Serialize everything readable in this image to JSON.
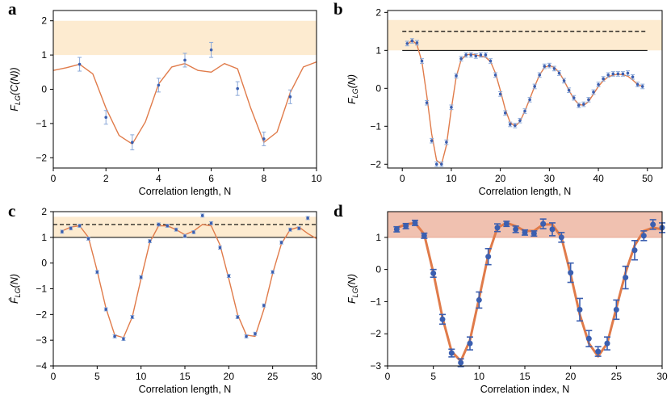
{
  "colors": {
    "band_yellow": "#fdebd0",
    "band_red": "#f0c1b0",
    "curve_orange": "#e07b4a",
    "marker_blue": "#3b5fb0",
    "errbar_blue": "#8aa8d8"
  },
  "chart_data": [
    {
      "panel": "a",
      "type": "scatter",
      "xlabel": "Correlation length, N",
      "ylabel": "F_LG(C(N))",
      "xlim": [
        0,
        10
      ],
      "ylim": [
        -2.3,
        2.3
      ],
      "xticks": [
        0,
        2,
        4,
        6,
        8,
        10
      ],
      "yticks": [
        -2,
        -1,
        0,
        1,
        2
      ],
      "band": [
        1,
        2
      ],
      "points": [
        {
          "x": 1,
          "y": 0.73,
          "err": 0.2
        },
        {
          "x": 2,
          "y": -0.82,
          "err": 0.2
        },
        {
          "x": 3,
          "y": -1.55,
          "err": 0.22
        },
        {
          "x": 4,
          "y": 0.12,
          "err": 0.2
        },
        {
          "x": 5,
          "y": 0.85,
          "err": 0.2
        },
        {
          "x": 6,
          "y": 1.15,
          "err": 0.22
        },
        {
          "x": 7,
          "y": 0.02,
          "err": 0.2
        },
        {
          "x": 8,
          "y": -1.45,
          "err": 0.2
        },
        {
          "x": 9,
          "y": -0.22,
          "err": 0.2
        }
      ],
      "fit": [
        [
          0,
          0.55
        ],
        [
          0.5,
          0.63
        ],
        [
          1,
          0.73
        ],
        [
          1.5,
          0.45
        ],
        [
          2,
          -0.55
        ],
        [
          2.5,
          -1.35
        ],
        [
          3,
          -1.6
        ],
        [
          3.5,
          -0.95
        ],
        [
          4,
          0.15
        ],
        [
          4.5,
          0.65
        ],
        [
          5,
          0.75
        ],
        [
          5.5,
          0.55
        ],
        [
          6,
          0.5
        ],
        [
          6.5,
          0.75
        ],
        [
          7,
          0.6
        ],
        [
          7.5,
          -0.55
        ],
        [
          8,
          -1.55
        ],
        [
          8.5,
          -1.25
        ],
        [
          9,
          -0.1
        ],
        [
          9.5,
          0.65
        ],
        [
          10,
          0.8
        ]
      ]
    },
    {
      "panel": "b",
      "type": "scatter",
      "xlabel": "Correlation length, N",
      "ylabel": "F_LG(N)",
      "xlim": [
        -3,
        53
      ],
      "ylim": [
        -2.1,
        2.05
      ],
      "xticks": [
        0,
        10,
        20,
        30,
        40,
        50
      ],
      "yticks": [
        -2,
        -1,
        0,
        1,
        2
      ],
      "band": [
        1,
        1.8
      ],
      "dashed": 1.5,
      "solid": 1,
      "points": [
        {
          "x": 1,
          "y": 1.18
        },
        {
          "x": 2,
          "y": 1.25
        },
        {
          "x": 3,
          "y": 1.2
        },
        {
          "x": 4,
          "y": 0.72
        },
        {
          "x": 5,
          "y": -0.38
        },
        {
          "x": 6,
          "y": -1.38
        },
        {
          "x": 7,
          "y": -2.0
        },
        {
          "x": 8,
          "y": -2.0
        },
        {
          "x": 9,
          "y": -1.42
        },
        {
          "x": 10,
          "y": -0.5
        },
        {
          "x": 11,
          "y": 0.33
        },
        {
          "x": 12,
          "y": 0.78
        },
        {
          "x": 13,
          "y": 0.88
        },
        {
          "x": 14,
          "y": 0.88
        },
        {
          "x": 15,
          "y": 0.85
        },
        {
          "x": 16,
          "y": 0.88
        },
        {
          "x": 17,
          "y": 0.88
        },
        {
          "x": 18,
          "y": 0.72
        },
        {
          "x": 19,
          "y": 0.35
        },
        {
          "x": 20,
          "y": -0.15
        },
        {
          "x": 21,
          "y": -0.65
        },
        {
          "x": 22,
          "y": -0.95
        },
        {
          "x": 23,
          "y": -0.98
        },
        {
          "x": 24,
          "y": -0.85
        },
        {
          "x": 25,
          "y": -0.6
        },
        {
          "x": 26,
          "y": -0.3
        },
        {
          "x": 27,
          "y": 0.05
        },
        {
          "x": 28,
          "y": 0.35
        },
        {
          "x": 29,
          "y": 0.58
        },
        {
          "x": 30,
          "y": 0.6
        },
        {
          "x": 31,
          "y": 0.52
        },
        {
          "x": 32,
          "y": 0.4
        },
        {
          "x": 33,
          "y": 0.2
        },
        {
          "x": 34,
          "y": -0.05
        },
        {
          "x": 35,
          "y": -0.25
        },
        {
          "x": 36,
          "y": -0.45
        },
        {
          "x": 37,
          "y": -0.42
        },
        {
          "x": 38,
          "y": -0.3
        },
        {
          "x": 39,
          "y": -0.1
        },
        {
          "x": 40,
          "y": 0.1
        },
        {
          "x": 41,
          "y": 0.25
        },
        {
          "x": 42,
          "y": 0.35
        },
        {
          "x": 43,
          "y": 0.38
        },
        {
          "x": 44,
          "y": 0.38
        },
        {
          "x": 45,
          "y": 0.38
        },
        {
          "x": 46,
          "y": 0.4
        },
        {
          "x": 47,
          "y": 0.3
        },
        {
          "x": 48,
          "y": 0.1
        },
        {
          "x": 49,
          "y": 0.05
        }
      ],
      "fit": [
        [
          1,
          1.15
        ],
        [
          2,
          1.27
        ],
        [
          3,
          1.15
        ],
        [
          4,
          0.7
        ],
        [
          5,
          -0.2
        ],
        [
          6,
          -1.2
        ],
        [
          7,
          -1.9
        ],
        [
          8,
          -2.0
        ],
        [
          9,
          -1.5
        ],
        [
          10,
          -0.55
        ],
        [
          11,
          0.3
        ],
        [
          12,
          0.75
        ],
        [
          13,
          0.88
        ],
        [
          14,
          0.9
        ],
        [
          15,
          0.88
        ],
        [
          16,
          0.85
        ],
        [
          17,
          0.82
        ],
        [
          18,
          0.7
        ],
        [
          19,
          0.4
        ],
        [
          20,
          -0.05
        ],
        [
          21,
          -0.55
        ],
        [
          22,
          -0.9
        ],
        [
          23,
          -1.0
        ],
        [
          24,
          -0.88
        ],
        [
          25,
          -0.6
        ],
        [
          26,
          -0.28
        ],
        [
          27,
          0.05
        ],
        [
          28,
          0.35
        ],
        [
          29,
          0.55
        ],
        [
          30,
          0.6
        ],
        [
          31,
          0.55
        ],
        [
          32,
          0.42
        ],
        [
          33,
          0.2
        ],
        [
          34,
          -0.05
        ],
        [
          35,
          -0.28
        ],
        [
          36,
          -0.42
        ],
        [
          37,
          -0.45
        ],
        [
          38,
          -0.35
        ],
        [
          39,
          -0.15
        ],
        [
          40,
          0.05
        ],
        [
          41,
          0.2
        ],
        [
          42,
          0.3
        ],
        [
          43,
          0.35
        ],
        [
          44,
          0.37
        ],
        [
          45,
          0.36
        ],
        [
          46,
          0.32
        ],
        [
          47,
          0.22
        ],
        [
          48,
          0.1
        ],
        [
          49,
          0.05
        ]
      ]
    },
    {
      "panel": "c",
      "type": "scatter",
      "xlabel": "Correlation length, N",
      "ylabel": "F̂_LG(N)",
      "xlim": [
        0,
        30
      ],
      "ylim": [
        -4,
        2
      ],
      "xticks": [
        0,
        5,
        10,
        15,
        20,
        25,
        30
      ],
      "yticks": [
        -4,
        -3,
        -2,
        -1,
        0,
        1,
        2
      ],
      "band": [
        1,
        1.8
      ],
      "dashed": 1.5,
      "solid": 1,
      "points": [
        {
          "x": 1,
          "y": 1.22
        },
        {
          "x": 2,
          "y": 1.35
        },
        {
          "x": 3,
          "y": 1.45
        },
        {
          "x": 4,
          "y": 0.95
        },
        {
          "x": 5,
          "y": -0.35
        },
        {
          "x": 6,
          "y": -1.8
        },
        {
          "x": 7,
          "y": -2.85
        },
        {
          "x": 8,
          "y": -2.95
        },
        {
          "x": 9,
          "y": -2.1
        },
        {
          "x": 10,
          "y": -0.55
        },
        {
          "x": 11,
          "y": 0.85
        },
        {
          "x": 12,
          "y": 1.5
        },
        {
          "x": 13,
          "y": 1.45
        },
        {
          "x": 14,
          "y": 1.3
        },
        {
          "x": 15,
          "y": 1.05
        },
        {
          "x": 16,
          "y": 1.2
        },
        {
          "x": 17,
          "y": 1.85
        },
        {
          "x": 18,
          "y": 1.55
        },
        {
          "x": 19,
          "y": 0.6
        },
        {
          "x": 20,
          "y": -0.5
        },
        {
          "x": 21,
          "y": -2.1
        },
        {
          "x": 22,
          "y": -2.85
        },
        {
          "x": 23,
          "y": -2.75
        },
        {
          "x": 24,
          "y": -1.65
        },
        {
          "x": 25,
          "y": -0.35
        },
        {
          "x": 26,
          "y": 0.8
        },
        {
          "x": 27,
          "y": 1.3
        },
        {
          "x": 28,
          "y": 1.35
        },
        {
          "x": 29,
          "y": 1.75
        }
      ],
      "fit": [
        [
          1,
          1.25
        ],
        [
          2,
          1.4
        ],
        [
          3,
          1.45
        ],
        [
          4,
          1.0
        ],
        [
          5,
          -0.3
        ],
        [
          6,
          -1.75
        ],
        [
          7,
          -2.8
        ],
        [
          8,
          -2.9
        ],
        [
          9,
          -2.1
        ],
        [
          10,
          -0.6
        ],
        [
          11,
          0.8
        ],
        [
          12,
          1.45
        ],
        [
          13,
          1.45
        ],
        [
          14,
          1.3
        ],
        [
          15,
          1.1
        ],
        [
          16,
          1.25
        ],
        [
          17,
          1.5
        ],
        [
          18,
          1.45
        ],
        [
          19,
          0.7
        ],
        [
          20,
          -0.6
        ],
        [
          21,
          -2.0
        ],
        [
          22,
          -2.8
        ],
        [
          23,
          -2.85
        ],
        [
          24,
          -1.8
        ],
        [
          25,
          -0.4
        ],
        [
          26,
          0.75
        ],
        [
          27,
          1.3
        ],
        [
          28,
          1.4
        ],
        [
          29,
          1.15
        ],
        [
          30,
          0.95
        ]
      ]
    },
    {
      "panel": "d",
      "type": "scatter",
      "xlabel": "Correlation index, N",
      "ylabel": "F_LG(N)",
      "xlim": [
        0,
        30
      ],
      "ylim": [
        -3,
        1.8
      ],
      "xticks": [
        0,
        5,
        10,
        15,
        20,
        25,
        30
      ],
      "yticks": [
        -3,
        -2,
        -1,
        0,
        1
      ],
      "band": [
        1,
        1.8
      ],
      "points": [
        {
          "x": 1,
          "y": 1.25,
          "err": 0.08
        },
        {
          "x": 2,
          "y": 1.35,
          "err": 0.08
        },
        {
          "x": 3,
          "y": 1.45,
          "err": 0.08
        },
        {
          "x": 4,
          "y": 1.05,
          "err": 0.08
        },
        {
          "x": 5,
          "y": -0.12,
          "err": 0.12
        },
        {
          "x": 6,
          "y": -1.55,
          "err": 0.15
        },
        {
          "x": 7,
          "y": -2.6,
          "err": 0.12
        },
        {
          "x": 8,
          "y": -2.9,
          "err": 0.12
        },
        {
          "x": 9,
          "y": -2.3,
          "err": 0.2
        },
        {
          "x": 10,
          "y": -0.95,
          "err": 0.25
        },
        {
          "x": 11,
          "y": 0.4,
          "err": 0.25
        },
        {
          "x": 12,
          "y": 1.3,
          "err": 0.12
        },
        {
          "x": 13,
          "y": 1.42,
          "err": 0.08
        },
        {
          "x": 14,
          "y": 1.25,
          "err": 0.1
        },
        {
          "x": 15,
          "y": 1.15,
          "err": 0.08
        },
        {
          "x": 16,
          "y": 1.12,
          "err": 0.08
        },
        {
          "x": 17,
          "y": 1.42,
          "err": 0.15
        },
        {
          "x": 18,
          "y": 1.25,
          "err": 0.2
        },
        {
          "x": 19,
          "y": 1.0,
          "err": 0.15
        },
        {
          "x": 20,
          "y": -0.1,
          "err": 0.3
        },
        {
          "x": 21,
          "y": -1.25,
          "err": 0.35
        },
        {
          "x": 22,
          "y": -2.15,
          "err": 0.25
        },
        {
          "x": 23,
          "y": -2.55,
          "err": 0.15
        },
        {
          "x": 24,
          "y": -2.3,
          "err": 0.2
        },
        {
          "x": 25,
          "y": -1.25,
          "err": 0.3
        },
        {
          "x": 26,
          "y": -0.25,
          "err": 0.35
        },
        {
          "x": 27,
          "y": 0.6,
          "err": 0.3
        },
        {
          "x": 28,
          "y": 1.05,
          "err": 0.15
        },
        {
          "x": 29,
          "y": 1.4,
          "err": 0.15
        },
        {
          "x": 30,
          "y": 1.3,
          "err": 0.15
        }
      ],
      "fit": [
        [
          1,
          1.3
        ],
        [
          2,
          1.4
        ],
        [
          3,
          1.45
        ],
        [
          4,
          1.1
        ],
        [
          5,
          -0.1
        ],
        [
          6,
          -1.5
        ],
        [
          7,
          -2.55
        ],
        [
          8,
          -2.85
        ],
        [
          9,
          -2.2
        ],
        [
          10,
          -0.9
        ],
        [
          11,
          0.45
        ],
        [
          12,
          1.3
        ],
        [
          13,
          1.45
        ],
        [
          14,
          1.35
        ],
        [
          15,
          1.2
        ],
        [
          16,
          1.2
        ],
        [
          17,
          1.4
        ],
        [
          18,
          1.4
        ],
        [
          19,
          1.0
        ],
        [
          20,
          -0.15
        ],
        [
          21,
          -1.4
        ],
        [
          22,
          -2.3
        ],
        [
          23,
          -2.7
        ],
        [
          24,
          -2.3
        ],
        [
          25,
          -1.2
        ],
        [
          26,
          -0.1
        ],
        [
          27,
          0.75
        ],
        [
          28,
          1.2
        ],
        [
          29,
          1.3
        ],
        [
          30,
          1.25
        ]
      ]
    }
  ]
}
